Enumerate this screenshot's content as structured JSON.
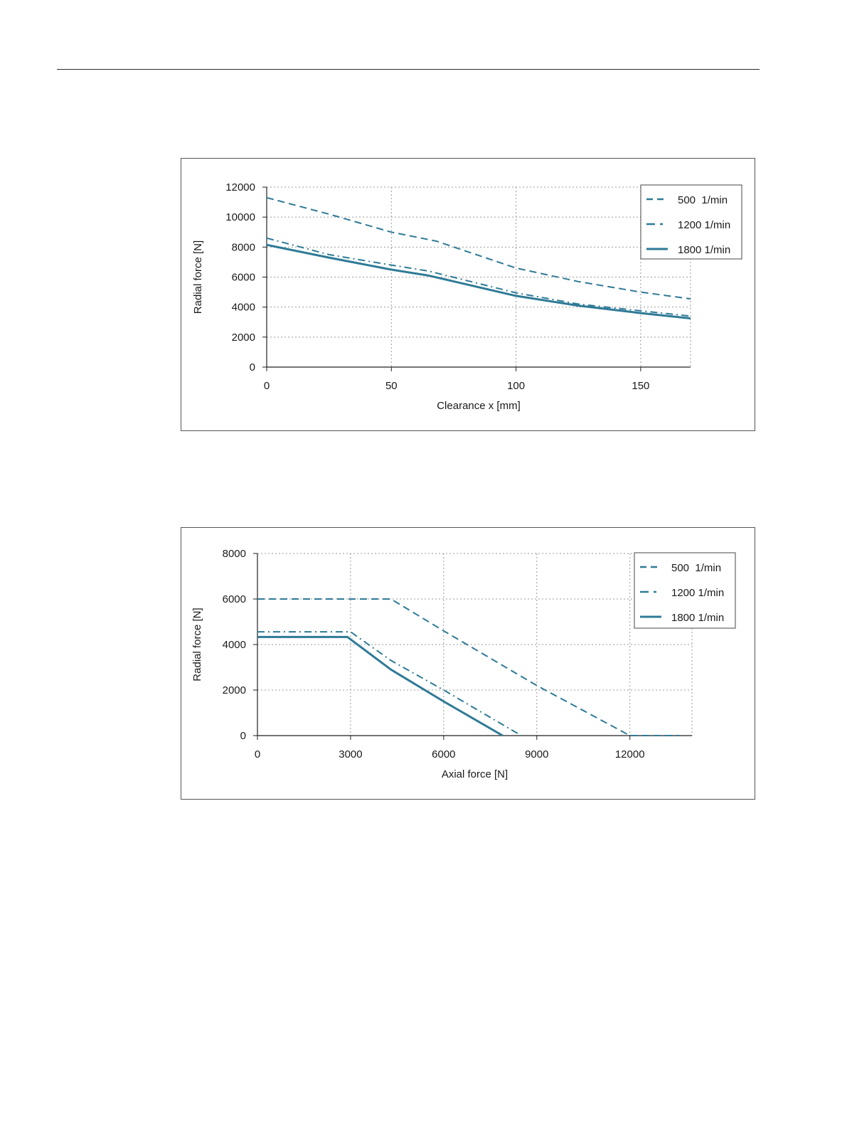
{
  "chart_data": [
    {
      "type": "line",
      "title": "",
      "xlabel": "Clearance x [mm]",
      "ylabel": "Radial force [N]",
      "xlim": [
        0,
        170
      ],
      "ylim": [
        0,
        12000
      ],
      "xticks": [
        0,
        50,
        100,
        150
      ],
      "yticks": [
        0,
        2000,
        4000,
        6000,
        8000,
        10000,
        12000
      ],
      "grid": true,
      "legend_position": "top-right",
      "series": [
        {
          "name": "500  1/min",
          "style": "dashed",
          "x": [
            0,
            25,
            50,
            68,
            100,
            125,
            150,
            170
          ],
          "y": [
            11300,
            10200,
            9000,
            8400,
            6600,
            5700,
            5000,
            4550
          ]
        },
        {
          "name": "1200 1/min",
          "style": "dashdot",
          "x": [
            0,
            25,
            50,
            65,
            100,
            125,
            150,
            170
          ],
          "y": [
            8600,
            7500,
            6800,
            6400,
            4950,
            4200,
            3750,
            3400
          ]
        },
        {
          "name": "1800 1/min",
          "style": "solid",
          "x": [
            0,
            25,
            50,
            65,
            100,
            125,
            150,
            170
          ],
          "y": [
            8150,
            7300,
            6500,
            6100,
            4750,
            4100,
            3600,
            3250
          ]
        }
      ],
      "colors": {
        "line": "#2e7a96",
        "grid": "#9a9a9a",
        "axis": "#222222"
      }
    },
    {
      "type": "line",
      "title": "",
      "xlabel": "Axial force [N]",
      "ylabel": "Radial force [N]",
      "xlim": [
        0,
        14000
      ],
      "ylim": [
        0,
        8000
      ],
      "xticks": [
        0,
        3000,
        6000,
        9000,
        12000
      ],
      "yticks": [
        0,
        2000,
        4000,
        6000,
        8000
      ],
      "grid": true,
      "legend_position": "top-right",
      "series": [
        {
          "name": "500  1/min",
          "style": "dashed",
          "x": [
            0,
            4300,
            6000,
            9000,
            12000,
            13600
          ],
          "y": [
            6000,
            6000,
            4600,
            2200,
            0,
            0
          ]
        },
        {
          "name": "1200 1/min",
          "style": "dashdot",
          "x": [
            0,
            3000,
            4300,
            6000,
            8500
          ],
          "y": [
            4560,
            4560,
            3300,
            2000,
            0
          ]
        },
        {
          "name": "1800 1/min",
          "style": "solid",
          "x": [
            0,
            2900,
            4300,
            6000,
            7900
          ],
          "y": [
            4330,
            4330,
            2900,
            1500,
            0
          ]
        }
      ],
      "colors": {
        "line": "#2e7a96",
        "grid": "#9a9a9a",
        "axis": "#222222"
      }
    }
  ]
}
